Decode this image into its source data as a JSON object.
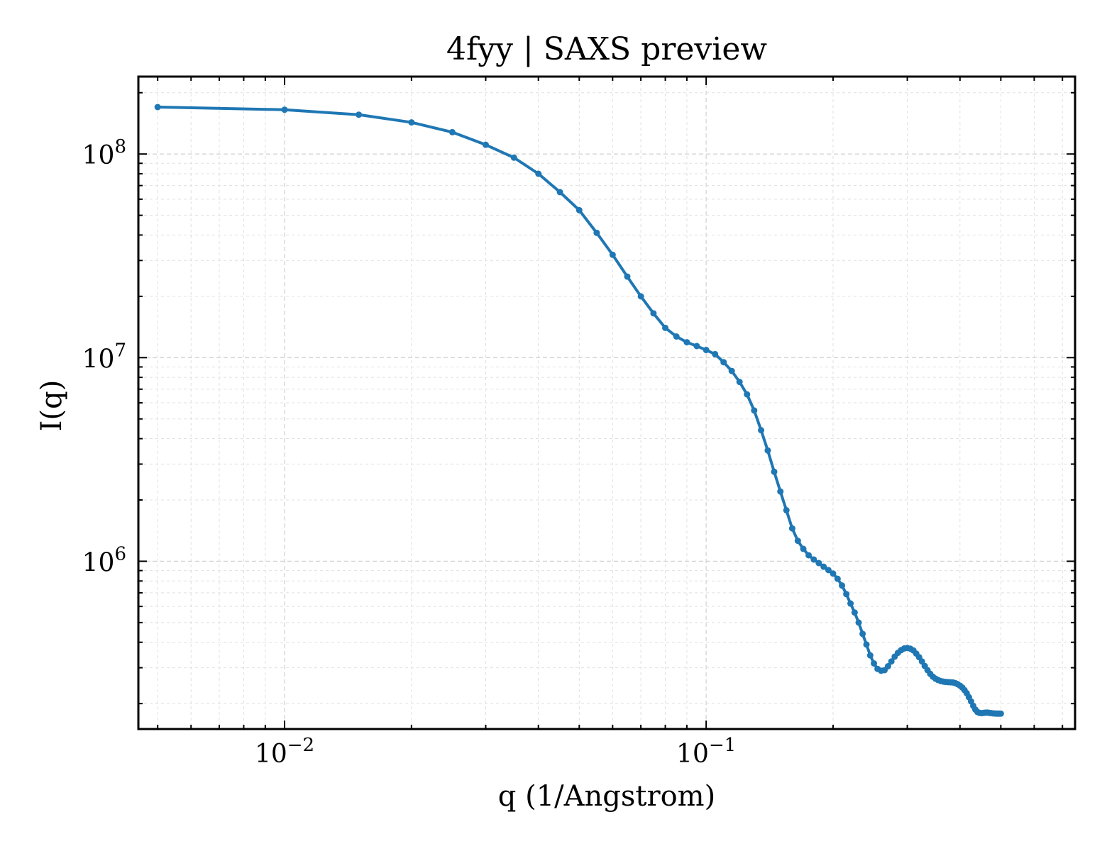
{
  "chart_data": {
    "type": "line",
    "title": "4fyy | SAXS preview",
    "xlabel": "q (1/Angstrom)",
    "ylabel": "I(q)",
    "xscale": "log",
    "yscale": "log",
    "xlim": [
      0.0045,
      0.75
    ],
    "ylim": [
      150000,
      240000000
    ],
    "grid": true,
    "legend": "none",
    "x_tick_labels": [
      {
        "value": 0.01,
        "base": "10",
        "exp": "−2"
      },
      {
        "value": 0.1,
        "base": "10",
        "exp": "−1"
      }
    ],
    "y_tick_labels": [
      {
        "value": 1000000,
        "base": "10",
        "exp": "6"
      },
      {
        "value": 10000000,
        "base": "10",
        "exp": "7"
      },
      {
        "value": 100000000,
        "base": "10",
        "exp": "8"
      }
    ],
    "series": [
      {
        "color": "#1f77b4",
        "marker": "circle",
        "points": [
          [
            0.005,
            170000000
          ],
          [
            0.01,
            165000000
          ],
          [
            0.015,
            156000000
          ],
          [
            0.02,
            143000000
          ],
          [
            0.025,
            128000000
          ],
          [
            0.03,
            111000000
          ],
          [
            0.035,
            96000000
          ],
          [
            0.04,
            80000000
          ],
          [
            0.045,
            65000000
          ],
          [
            0.05,
            53000000
          ],
          [
            0.055,
            41000000
          ],
          [
            0.06,
            32000000
          ],
          [
            0.065,
            25000000
          ],
          [
            0.07,
            20000000
          ],
          [
            0.075,
            16500000
          ],
          [
            0.08,
            14000000
          ],
          [
            0.085,
            12700000
          ],
          [
            0.09,
            11900000
          ],
          [
            0.095,
            11400000
          ],
          [
            0.1,
            10900000
          ],
          [
            0.105,
            10400000
          ],
          [
            0.11,
            9500000
          ],
          [
            0.115,
            8600000
          ],
          [
            0.12,
            7600000
          ],
          [
            0.125,
            6600000
          ],
          [
            0.13,
            5500000
          ],
          [
            0.135,
            4400000
          ],
          [
            0.14,
            3500000
          ],
          [
            0.145,
            2750000
          ],
          [
            0.15,
            2200000
          ],
          [
            0.155,
            1780000
          ],
          [
            0.16,
            1450000
          ],
          [
            0.165,
            1260000
          ],
          [
            0.17,
            1150000
          ],
          [
            0.175,
            1070000
          ],
          [
            0.18,
            1020000
          ],
          [
            0.185,
            980000
          ],
          [
            0.19,
            940000
          ],
          [
            0.195,
            905000
          ],
          [
            0.2,
            870000
          ],
          [
            0.205,
            820000
          ],
          [
            0.21,
            760000
          ],
          [
            0.215,
            690000
          ],
          [
            0.22,
            620000
          ],
          [
            0.225,
            560000
          ],
          [
            0.23,
            500000
          ],
          [
            0.235,
            440000
          ],
          [
            0.24,
            390000
          ],
          [
            0.245,
            345000
          ],
          [
            0.25,
            315000
          ],
          [
            0.255,
            296000
          ],
          [
            0.26,
            290000
          ],
          [
            0.265,
            292000
          ],
          [
            0.27,
            305000
          ],
          [
            0.275,
            322000
          ],
          [
            0.28,
            340000
          ],
          [
            0.285,
            355000
          ],
          [
            0.29,
            366000
          ],
          [
            0.295,
            373000
          ],
          [
            0.3,
            375000
          ],
          [
            0.305,
            372000
          ],
          [
            0.31,
            365000
          ],
          [
            0.315,
            352000
          ],
          [
            0.32,
            338000
          ],
          [
            0.325,
            322000
          ],
          [
            0.33,
            306000
          ],
          [
            0.335,
            292000
          ],
          [
            0.34,
            280000
          ],
          [
            0.345,
            271000
          ],
          [
            0.35,
            265000
          ],
          [
            0.355,
            261000
          ],
          [
            0.36,
            258000
          ],
          [
            0.365,
            256500
          ],
          [
            0.37,
            255500
          ],
          [
            0.375,
            255000
          ],
          [
            0.38,
            254500
          ],
          [
            0.385,
            254000
          ],
          [
            0.39,
            252000
          ],
          [
            0.395,
            249000
          ],
          [
            0.4,
            245000
          ],
          [
            0.405,
            240000
          ],
          [
            0.41,
            233000
          ],
          [
            0.415,
            225000
          ],
          [
            0.42,
            215000
          ],
          [
            0.425,
            205000
          ],
          [
            0.43,
            195000
          ],
          [
            0.435,
            187000
          ],
          [
            0.44,
            182000
          ],
          [
            0.445,
            180000
          ],
          [
            0.45,
            179500
          ],
          [
            0.455,
            180000
          ],
          [
            0.46,
            180500
          ],
          [
            0.465,
            180500
          ],
          [
            0.47,
            180000
          ],
          [
            0.475,
            179500
          ],
          [
            0.48,
            179000
          ],
          [
            0.485,
            178800
          ],
          [
            0.49,
            178500
          ],
          [
            0.495,
            178500
          ],
          [
            0.5,
            178500
          ]
        ]
      }
    ]
  }
}
